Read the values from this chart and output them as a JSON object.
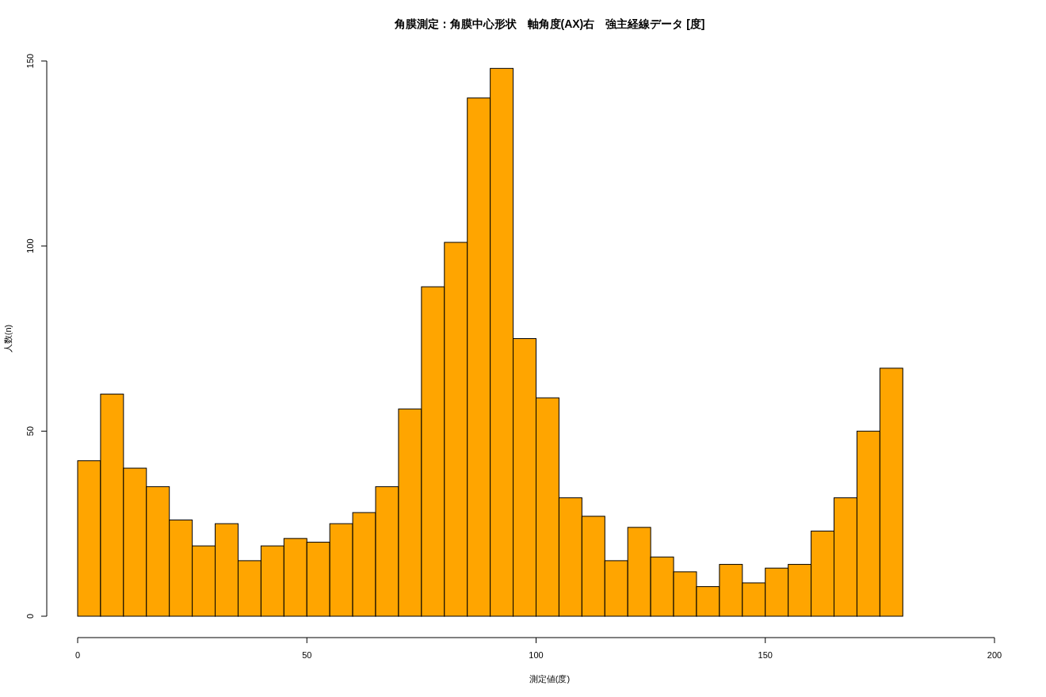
{
  "chart_data": {
    "type": "histogram",
    "title": "角膜測定：角膜中心形状　軸角度(AX)右　強主経線データ [度]",
    "xlabel": "測定値(度)",
    "ylabel": "人数(n)",
    "color": "#ffa500",
    "bins": [
      0,
      5,
      10,
      15,
      20,
      25,
      30,
      35,
      40,
      45,
      50,
      55,
      60,
      65,
      70,
      75,
      80,
      85,
      90,
      95,
      100,
      105,
      110,
      115,
      120,
      125,
      130,
      135,
      140,
      145,
      150,
      155,
      160,
      165,
      170,
      175,
      180
    ],
    "values": [
      42,
      60,
      40,
      35,
      26,
      19,
      25,
      15,
      19,
      21,
      20,
      25,
      28,
      35,
      56,
      89,
      101,
      140,
      148,
      75,
      59,
      32,
      27,
      15,
      24,
      16,
      12,
      8,
      14,
      9,
      13,
      14,
      23,
      32,
      50,
      67
    ],
    "xlim": [
      0,
      200
    ],
    "ylim": [
      0,
      150
    ],
    "xticks": [
      0,
      50,
      100,
      150,
      200
    ],
    "yticks": [
      0,
      50,
      100,
      150
    ],
    "grid": false
  }
}
